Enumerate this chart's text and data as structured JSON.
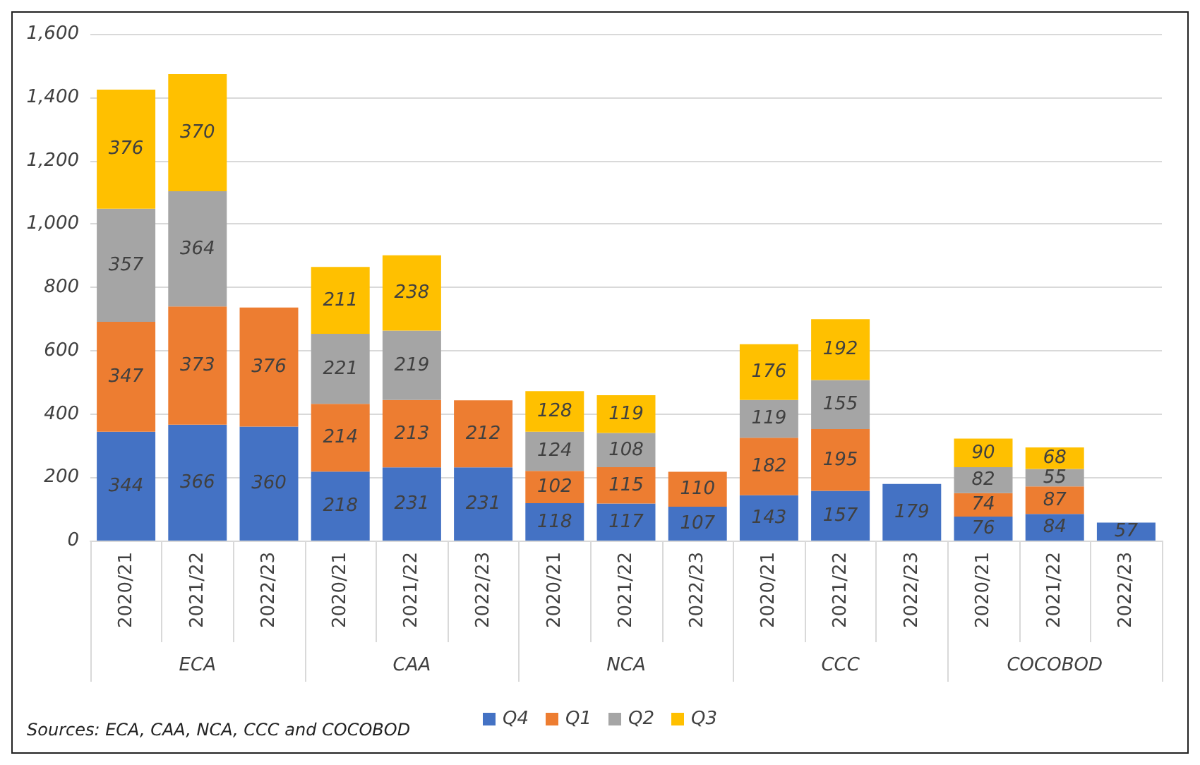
{
  "chart_data": {
    "type": "bar",
    "stacked": true,
    "data_labels": true,
    "grid": "y",
    "legend": "bottom",
    "categories": [
      "2020/21",
      "2021/22",
      "2022/23",
      "2020/21",
      "2021/22",
      "2022/23",
      "2020/21",
      "2021/22",
      "2022/23",
      "2020/21",
      "2021/22",
      "2022/23",
      "2020/21",
      "2021/22",
      "2022/23"
    ],
    "series": [
      {
        "name": "Q4",
        "color": "#4472c4",
        "values": [
          344,
          366,
          360,
          218,
          231,
          231,
          118,
          117,
          107,
          143,
          157,
          179,
          76,
          84,
          57
        ]
      },
      {
        "name": "Q1",
        "color": "#ed7d31",
        "values": [
          347,
          373,
          376,
          214,
          213,
          212,
          102,
          115,
          110,
          182,
          195,
          null,
          74,
          87,
          null
        ]
      },
      {
        "name": "Q2",
        "color": "#a5a5a5",
        "values": [
          357,
          364,
          null,
          221,
          219,
          null,
          124,
          108,
          null,
          119,
          155,
          null,
          82,
          55,
          null
        ]
      },
      {
        "name": "Q3",
        "color": "#ffc000",
        "values": [
          376,
          370,
          null,
          211,
          238,
          null,
          128,
          119,
          null,
          176,
          192,
          null,
          90,
          68,
          null
        ]
      }
    ],
    "ylim": [
      0,
      1600
    ],
    "yticks": [
      0,
      200,
      400,
      600,
      800,
      {
        "value": 1000,
        "label": "1,000"
      },
      {
        "value": 1200,
        "label": "1,200"
      },
      {
        "value": 1400,
        "label": "1,400"
      },
      {
        "value": 1600,
        "label": "1,600"
      }
    ],
    "annotations": [
      "ECA",
      "CAA",
      "NCA",
      "CCC",
      "COCOBOD",
      "Sources: ECA, CAA, NCA, CCC and COCOBOD"
    ]
  }
}
